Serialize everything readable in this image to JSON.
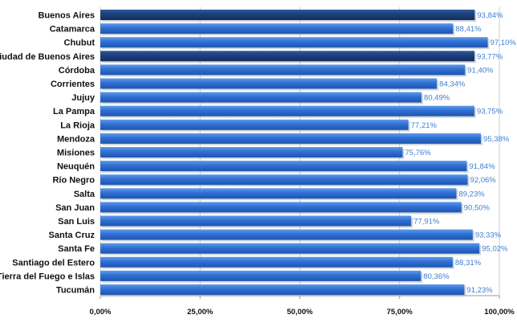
{
  "chart_data": {
    "type": "bar",
    "orientation": "horizontal",
    "categories": [
      "Buenos Aires",
      "Catamarca",
      "Chubut",
      "Ciudad de Buenos Aires",
      "Córdoba",
      "Corrientes",
      "Jujuy",
      "La Pampa",
      "La Rioja",
      "Mendoza",
      "Misiones",
      "Neuquén",
      "Río Negro",
      "Salta",
      "San Juan",
      "San Luis",
      "Santa Cruz",
      "Santa Fe",
      "Santiago del Estero",
      "Tierra del Fuego e Islas",
      "Tucumán"
    ],
    "values": [
      93.84,
      88.41,
      97.1,
      93.77,
      91.4,
      84.34,
      80.49,
      93.75,
      77.21,
      95.38,
      75.76,
      91.84,
      92.06,
      89.23,
      90.5,
      77.91,
      93.33,
      95.02,
      88.31,
      80.36,
      91.23
    ],
    "value_labels": [
      "93,84%",
      "88,41%",
      "97,10%",
      "93,77%",
      "91,40%",
      "84,34%",
      "80,49%",
      "93,75%",
      "77,21%",
      "95,38%",
      "75,76%",
      "91,84%",
      "92,06%",
      "89,23%",
      "90,50%",
      "77,91%",
      "93,33%",
      "95,02%",
      "88,31%",
      "80,36%",
      "91,23%"
    ],
    "highlighted": [
      "Buenos Aires",
      "Ciudad de Buenos Aires"
    ],
    "xlim": [
      0,
      100
    ],
    "x_ticks": [
      0,
      25,
      50,
      75,
      100
    ],
    "x_tick_labels": [
      "0,00%",
      "25,00%",
      "50,00%",
      "75,00%",
      "100,00%"
    ],
    "title": "",
    "xlabel": "",
    "ylabel": "",
    "grid": true,
    "colors": {
      "bar": "#2f6fd4",
      "bar_highlight": "#1c3f7a",
      "value_label": "#3f7fd0",
      "grid": "#cccccc"
    }
  }
}
